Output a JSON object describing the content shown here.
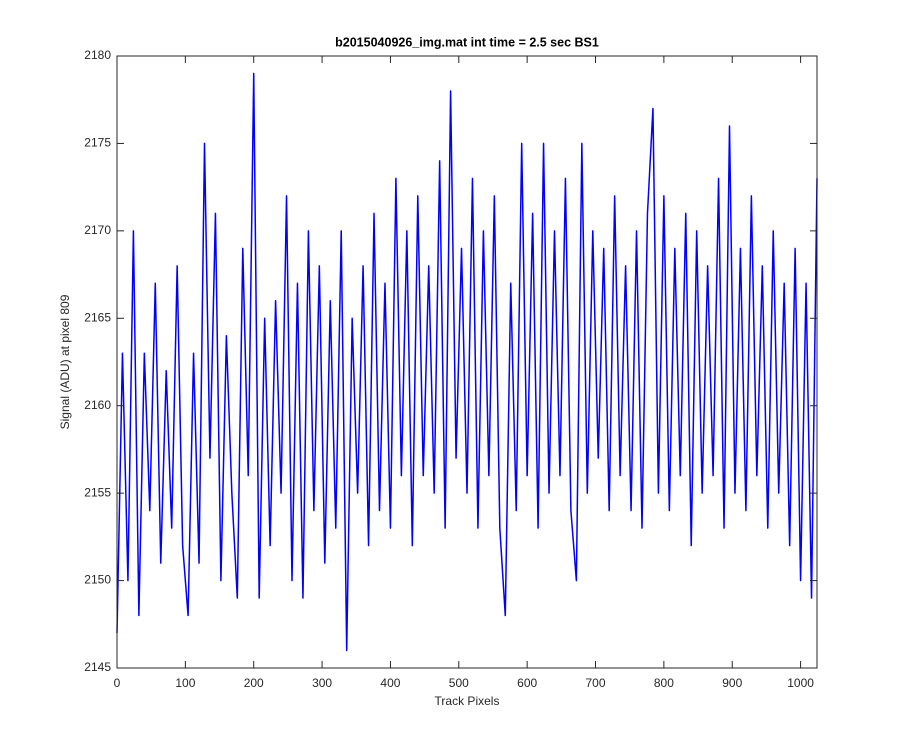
{
  "chart_data": {
    "type": "line",
    "title": "b2015040926_img.mat int time = 2.5 sec   BS1",
    "x_label": "Track Pixels",
    "y_label": "Signal (ADU) at pixel 809",
    "x": [
      0,
      8,
      16,
      24,
      32,
      40,
      48,
      56,
      64,
      72,
      80,
      88,
      96,
      104,
      112,
      120,
      128,
      136,
      144,
      152,
      160,
      168,
      176,
      184,
      192,
      200,
      208,
      216,
      224,
      232,
      240,
      248,
      256,
      264,
      272,
      280,
      288,
      296,
      304,
      312,
      320,
      328,
      336,
      344,
      352,
      360,
      368,
      376,
      384,
      392,
      400,
      408,
      416,
      424,
      432,
      440,
      448,
      456,
      464,
      472,
      480,
      488,
      496,
      504,
      512,
      520,
      528,
      536,
      544,
      552,
      560,
      568,
      576,
      584,
      592,
      600,
      608,
      616,
      624,
      632,
      640,
      648,
      656,
      664,
      672,
      680,
      688,
      696,
      704,
      712,
      720,
      728,
      736,
      744,
      752,
      760,
      768,
      776,
      784,
      792,
      800,
      808,
      816,
      824,
      832,
      840,
      848,
      856,
      864,
      872,
      880,
      888,
      896,
      904,
      912,
      920,
      928,
      936,
      944,
      952,
      960,
      968,
      976,
      984,
      992,
      1000,
      1008,
      1016,
      1024
    ],
    "series": [
      {
        "name": "Signal",
        "color": "#0000ff",
        "values": [
          2147,
          2163,
          2150,
          2170,
          2148,
          2163,
          2154,
          2167,
          2151,
          2162,
          2153,
          2168,
          2152,
          2148,
          2163,
          2151,
          2175,
          2157,
          2171,
          2150,
          2164,
          2155,
          2149,
          2169,
          2156,
          2179,
          2149,
          2165,
          2152,
          2166,
          2155,
          2172,
          2150,
          2167,
          2149,
          2170,
          2154,
          2168,
          2151,
          2166,
          2153,
          2170,
          2146,
          2165,
          2155,
          2168,
          2152,
          2171,
          2154,
          2167,
          2153,
          2173,
          2156,
          2170,
          2152,
          2172,
          2156,
          2168,
          2155,
          2174,
          2153,
          2178,
          2157,
          2169,
          2155,
          2173,
          2153,
          2170,
          2156,
          2172,
          2153,
          2148,
          2167,
          2154,
          2175,
          2156,
          2171,
          2153,
          2175,
          2155,
          2170,
          2156,
          2173,
          2154,
          2150,
          2175,
          2155,
          2170,
          2157,
          2169,
          2154,
          2172,
          2156,
          2168,
          2154,
          2170,
          2153,
          2171,
          2177,
          2155,
          2172,
          2154,
          2169,
          2156,
          2171,
          2152,
          2170,
          2155,
          2168,
          2156,
          2173,
          2153,
          2176,
          2155,
          2169,
          2154,
          2172,
          2156,
          2168,
          2153,
          2170,
          2155,
          2167,
          2152,
          2169,
          2150,
          2167,
          2149,
          2173
        ]
      }
    ],
    "xlim": [
      0,
      1024
    ],
    "xticks": [
      0,
      100,
      200,
      300,
      400,
      500,
      600,
      700,
      800,
      900,
      1000
    ],
    "ylim": [
      2145,
      2180
    ],
    "yticks": [
      2145,
      2150,
      2155,
      2160,
      2165,
      2170,
      2175,
      2180
    ]
  }
}
